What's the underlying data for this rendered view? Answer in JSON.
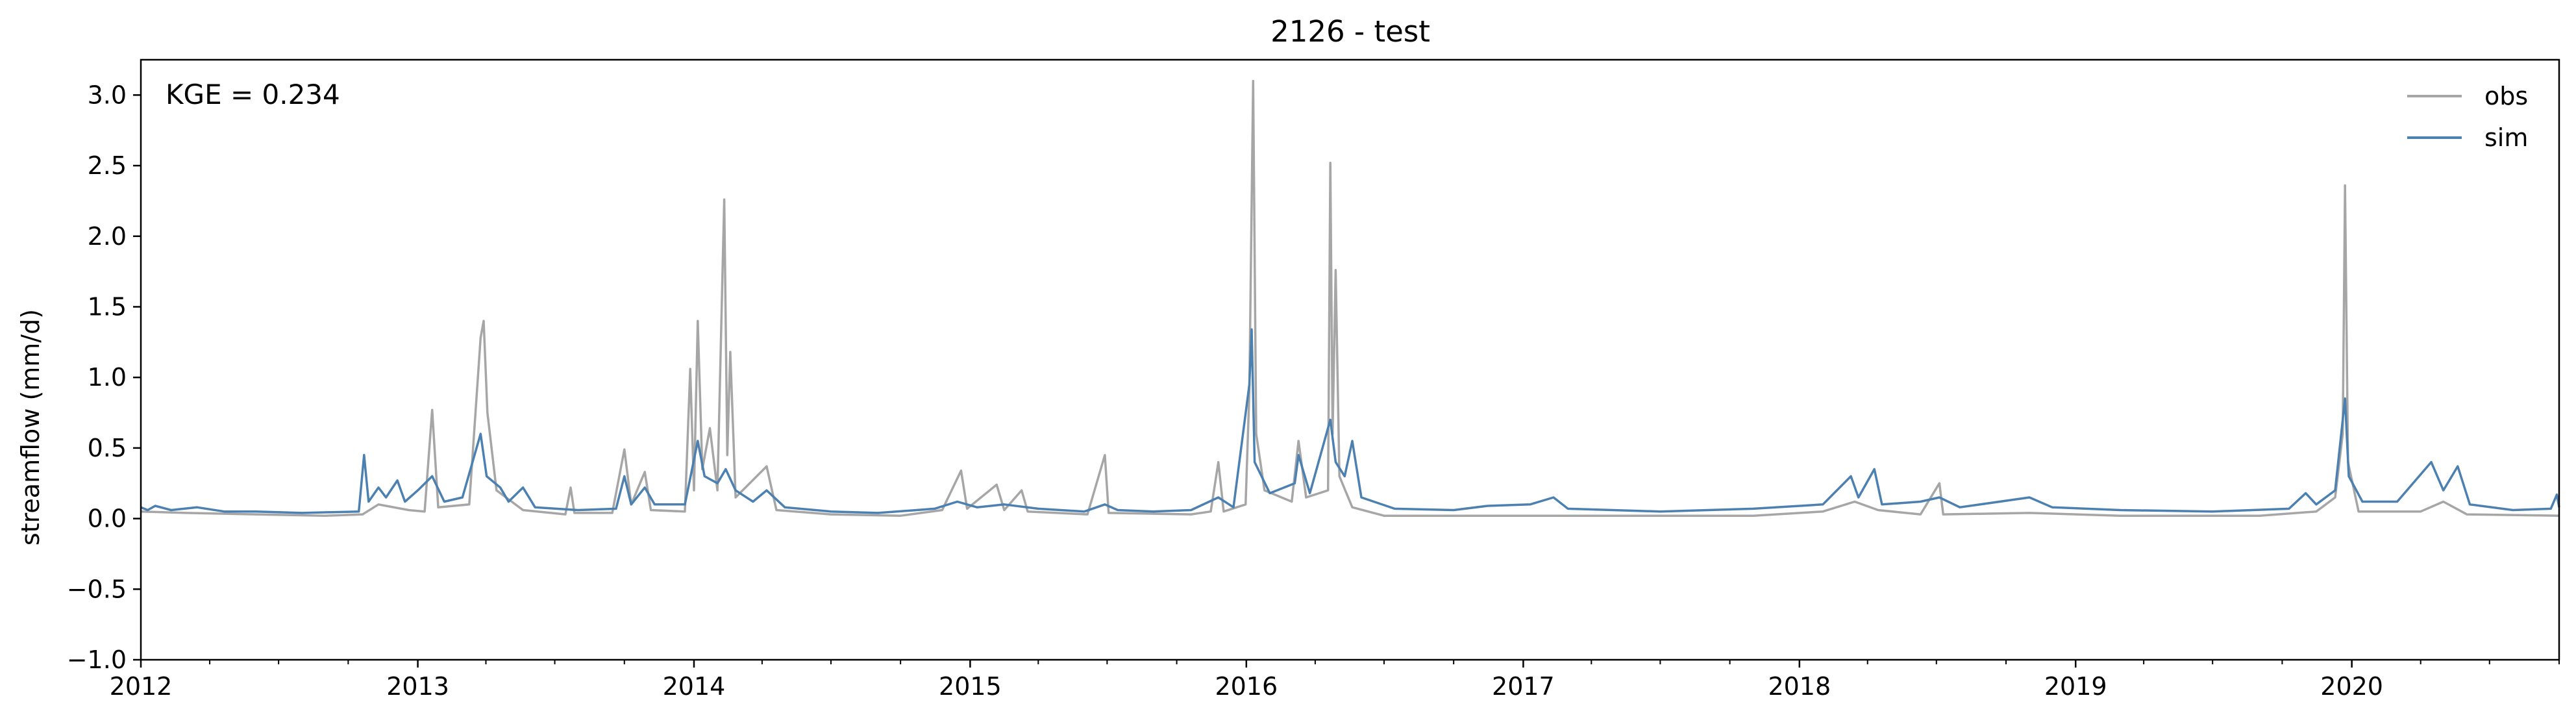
{
  "chart_data": {
    "type": "line",
    "title": "2126 - test",
    "ylabel": "streamflow (mm/d)",
    "xlabel": "",
    "annotation": "KGE = 0.234",
    "xlim": [
      "2012-01-01",
      "2020-10-01"
    ],
    "ylim": [
      -1.0,
      3.25
    ],
    "grid": false,
    "legend_position": "top-right",
    "x_ticks": [
      "2012",
      "2013",
      "2014",
      "2015",
      "2016",
      "2017",
      "2018",
      "2019",
      "2020"
    ],
    "y_ticks": [
      "−1.0",
      "−0.5",
      "0.0",
      "0.5",
      "1.0",
      "1.5",
      "2.0",
      "2.5",
      "3.0"
    ],
    "series": [
      {
        "name": "obs",
        "color": "#a6a6a6",
        "points": [
          [
            "2012-01-01",
            0.05
          ],
          [
            "2012-03-01",
            0.04
          ],
          [
            "2012-06-01",
            0.03
          ],
          [
            "2012-09-01",
            0.02
          ],
          [
            "2012-10-20",
            0.03
          ],
          [
            "2012-11-10",
            0.1
          ],
          [
            "2012-12-20",
            0.06
          ],
          [
            "2013-01-10",
            0.05
          ],
          [
            "2013-01-20",
            0.77
          ],
          [
            "2013-01-28",
            0.08
          ],
          [
            "2013-03-10",
            0.1
          ],
          [
            "2013-03-25",
            1.28
          ],
          [
            "2013-03-29",
            1.4
          ],
          [
            "2013-04-03",
            0.75
          ],
          [
            "2013-04-15",
            0.2
          ],
          [
            "2013-05-20",
            0.06
          ],
          [
            "2013-07-15",
            0.03
          ],
          [
            "2013-07-22",
            0.22
          ],
          [
            "2013-07-27",
            0.04
          ],
          [
            "2013-09-15",
            0.04
          ],
          [
            "2013-10-01",
            0.49
          ],
          [
            "2013-10-10",
            0.1
          ],
          [
            "2013-10-28",
            0.33
          ],
          [
            "2013-11-05",
            0.06
          ],
          [
            "2013-12-20",
            0.05
          ],
          [
            "2013-12-27",
            1.06
          ],
          [
            "2014-01-01",
            0.2
          ],
          [
            "2014-01-06",
            1.4
          ],
          [
            "2014-01-12",
            0.35
          ],
          [
            "2014-01-22",
            0.64
          ],
          [
            "2014-02-01",
            0.2
          ],
          [
            "2014-02-10",
            2.26
          ],
          [
            "2014-02-14",
            0.45
          ],
          [
            "2014-02-18",
            1.18
          ],
          [
            "2014-02-25",
            0.15
          ],
          [
            "2014-04-07",
            0.37
          ],
          [
            "2014-04-20",
            0.06
          ],
          [
            "2014-07-01",
            0.03
          ],
          [
            "2014-10-01",
            0.02
          ],
          [
            "2014-11-25",
            0.06
          ],
          [
            "2014-12-20",
            0.34
          ],
          [
            "2014-12-28",
            0.07
          ],
          [
            "2015-02-05",
            0.24
          ],
          [
            "2015-02-15",
            0.06
          ],
          [
            "2015-03-10",
            0.2
          ],
          [
            "2015-03-18",
            0.05
          ],
          [
            "2015-06-05",
            0.03
          ],
          [
            "2015-06-28",
            0.45
          ],
          [
            "2015-07-03",
            0.04
          ],
          [
            "2015-10-20",
            0.03
          ],
          [
            "2015-11-15",
            0.05
          ],
          [
            "2015-11-25",
            0.4
          ],
          [
            "2015-12-02",
            0.05
          ],
          [
            "2015-12-31",
            0.1
          ],
          [
            "2016-01-05",
            0.9
          ],
          [
            "2016-01-10",
            3.1
          ],
          [
            "2016-01-14",
            0.6
          ],
          [
            "2016-01-25",
            0.2
          ],
          [
            "2016-03-01",
            0.12
          ],
          [
            "2016-03-10",
            0.55
          ],
          [
            "2016-03-20",
            0.15
          ],
          [
            "2016-04-18",
            0.2
          ],
          [
            "2016-04-21",
            2.52
          ],
          [
            "2016-04-24",
            0.6
          ],
          [
            "2016-04-28",
            1.76
          ],
          [
            "2016-05-03",
            0.3
          ],
          [
            "2016-05-20",
            0.08
          ],
          [
            "2016-07-01",
            0.02
          ],
          [
            "2017-01-01",
            0.02
          ],
          [
            "2017-06-01",
            0.02
          ],
          [
            "2017-11-01",
            0.02
          ],
          [
            "2018-02-01",
            0.05
          ],
          [
            "2018-03-15",
            0.12
          ],
          [
            "2018-04-15",
            0.06
          ],
          [
            "2018-06-10",
            0.03
          ],
          [
            "2018-07-05",
            0.25
          ],
          [
            "2018-07-10",
            0.03
          ],
          [
            "2018-11-01",
            0.04
          ],
          [
            "2019-03-01",
            0.02
          ],
          [
            "2019-09-01",
            0.02
          ],
          [
            "2019-11-15",
            0.05
          ],
          [
            "2019-12-10",
            0.15
          ],
          [
            "2019-12-20",
            0.6
          ],
          [
            "2019-12-23",
            2.36
          ],
          [
            "2019-12-27",
            0.4
          ],
          [
            "2020-01-10",
            0.05
          ],
          [
            "2020-04-01",
            0.05
          ],
          [
            "2020-05-01",
            0.12
          ],
          [
            "2020-06-01",
            0.03
          ],
          [
            "2020-10-01",
            0.02
          ]
        ]
      },
      {
        "name": "sim",
        "color": "#4b80b0",
        "points": [
          [
            "2012-01-01",
            0.08
          ],
          [
            "2012-01-10",
            0.06
          ],
          [
            "2012-01-20",
            0.09
          ],
          [
            "2012-02-10",
            0.06
          ],
          [
            "2012-03-15",
            0.08
          ],
          [
            "2012-04-20",
            0.05
          ],
          [
            "2012-06-01",
            0.05
          ],
          [
            "2012-08-01",
            0.04
          ],
          [
            "2012-10-15",
            0.05
          ],
          [
            "2012-10-22",
            0.45
          ],
          [
            "2012-10-28",
            0.12
          ],
          [
            "2012-11-10",
            0.22
          ],
          [
            "2012-11-20",
            0.15
          ],
          [
            "2012-12-05",
            0.27
          ],
          [
            "2012-12-15",
            0.12
          ],
          [
            "2013-01-01",
            0.2
          ],
          [
            "2013-01-20",
            0.3
          ],
          [
            "2013-02-05",
            0.12
          ],
          [
            "2013-03-01",
            0.15
          ],
          [
            "2013-03-25",
            0.6
          ],
          [
            "2013-04-02",
            0.3
          ],
          [
            "2013-04-20",
            0.22
          ],
          [
            "2013-05-01",
            0.12
          ],
          [
            "2013-05-20",
            0.22
          ],
          [
            "2013-06-05",
            0.08
          ],
          [
            "2013-08-01",
            0.06
          ],
          [
            "2013-09-20",
            0.07
          ],
          [
            "2013-10-01",
            0.3
          ],
          [
            "2013-10-10",
            0.1
          ],
          [
            "2013-10-28",
            0.22
          ],
          [
            "2013-11-10",
            0.1
          ],
          [
            "2013-12-20",
            0.1
          ],
          [
            "2014-01-06",
            0.55
          ],
          [
            "2014-01-15",
            0.3
          ],
          [
            "2014-02-01",
            0.25
          ],
          [
            "2014-02-12",
            0.35
          ],
          [
            "2014-02-25",
            0.2
          ],
          [
            "2014-03-20",
            0.12
          ],
          [
            "2014-04-07",
            0.2
          ],
          [
            "2014-05-01",
            0.08
          ],
          [
            "2014-07-01",
            0.05
          ],
          [
            "2014-09-01",
            0.04
          ],
          [
            "2014-11-15",
            0.07
          ],
          [
            "2014-12-15",
            0.12
          ],
          [
            "2015-01-10",
            0.08
          ],
          [
            "2015-02-15",
            0.1
          ],
          [
            "2015-04-01",
            0.07
          ],
          [
            "2015-06-01",
            0.05
          ],
          [
            "2015-06-28",
            0.1
          ],
          [
            "2015-07-15",
            0.06
          ],
          [
            "2015-09-01",
            0.05
          ],
          [
            "2015-10-20",
            0.06
          ],
          [
            "2015-11-25",
            0.15
          ],
          [
            "2015-12-15",
            0.08
          ],
          [
            "2016-01-05",
            0.95
          ],
          [
            "2016-01-08",
            1.34
          ],
          [
            "2016-01-12",
            0.4
          ],
          [
            "2016-02-01",
            0.18
          ],
          [
            "2016-03-05",
            0.25
          ],
          [
            "2016-03-10",
            0.45
          ],
          [
            "2016-03-25",
            0.18
          ],
          [
            "2016-04-21",
            0.7
          ],
          [
            "2016-04-28",
            0.4
          ],
          [
            "2016-05-10",
            0.3
          ],
          [
            "2016-05-20",
            0.55
          ],
          [
            "2016-06-01",
            0.15
          ],
          [
            "2016-07-15",
            0.07
          ],
          [
            "2016-10-01",
            0.06
          ],
          [
            "2016-11-15",
            0.09
          ],
          [
            "2017-01-10",
            0.1
          ],
          [
            "2017-02-10",
            0.15
          ],
          [
            "2017-03-01",
            0.07
          ],
          [
            "2017-07-01",
            0.05
          ],
          [
            "2017-11-01",
            0.07
          ],
          [
            "2018-02-01",
            0.1
          ],
          [
            "2018-03-10",
            0.3
          ],
          [
            "2018-03-20",
            0.15
          ],
          [
            "2018-04-10",
            0.35
          ],
          [
            "2018-04-20",
            0.1
          ],
          [
            "2018-06-10",
            0.12
          ],
          [
            "2018-07-05",
            0.15
          ],
          [
            "2018-08-01",
            0.08
          ],
          [
            "2018-11-01",
            0.15
          ],
          [
            "2018-12-01",
            0.08
          ],
          [
            "2019-03-01",
            0.06
          ],
          [
            "2019-07-01",
            0.05
          ],
          [
            "2019-10-10",
            0.07
          ],
          [
            "2019-11-01",
            0.18
          ],
          [
            "2019-11-15",
            0.1
          ],
          [
            "2019-12-10",
            0.2
          ],
          [
            "2019-12-23",
            0.85
          ],
          [
            "2019-12-28",
            0.3
          ],
          [
            "2020-01-15",
            0.12
          ],
          [
            "2020-03-01",
            0.12
          ],
          [
            "2020-04-15",
            0.4
          ],
          [
            "2020-05-01",
            0.2
          ],
          [
            "2020-05-20",
            0.37
          ],
          [
            "2020-06-05",
            0.1
          ],
          [
            "2020-08-01",
            0.06
          ],
          [
            "2020-09-20",
            0.07
          ],
          [
            "2020-09-28",
            0.17
          ],
          [
            "2020-10-01",
            0.08
          ]
        ]
      }
    ]
  }
}
